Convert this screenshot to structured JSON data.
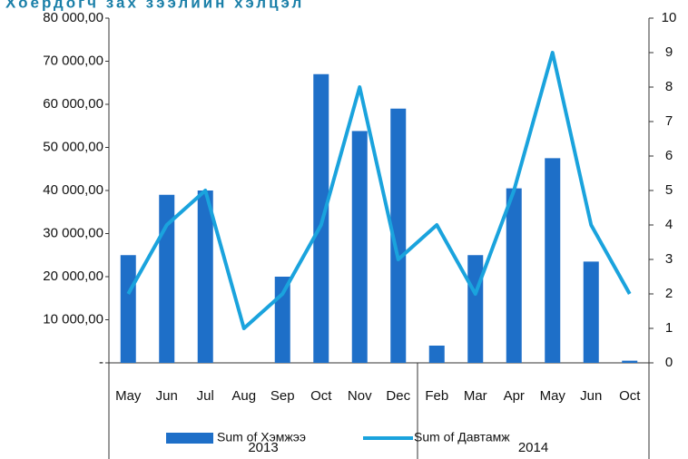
{
  "chart_data": {
    "type": "bar",
    "title": "Хоердогч зах зээлийн хэлцэл",
    "categories": [
      "May",
      "Jun",
      "Jul",
      "Aug",
      "Sep",
      "Oct",
      "Nov",
      "Dec",
      "Feb",
      "Mar",
      "Apr",
      "May",
      "Jun",
      "Oct"
    ],
    "groups": [
      {
        "name": "2013",
        "count": 8
      },
      {
        "name": "2014",
        "count": 6
      }
    ],
    "series": [
      {
        "name": "Sum of Хэмжээ",
        "type": "bar",
        "color": "#1e6fc8",
        "values": [
          25000,
          39000,
          40000,
          0,
          20000,
          67000,
          53800,
          59000,
          4000,
          25000,
          40500,
          47500,
          23500,
          500
        ]
      },
      {
        "name": "Sum of Давтамж",
        "type": "line",
        "axis": "y2",
        "color": "#1aa3dd",
        "values": [
          2,
          4,
          5,
          1,
          2,
          4,
          8,
          3,
          4,
          2,
          5,
          9,
          4,
          2
        ]
      }
    ],
    "ylim": [
      0,
      80000
    ],
    "yticks": [
      {
        "value": 0,
        "label": "-"
      },
      {
        "value": 10000,
        "label": "10 000,00"
      },
      {
        "value": 20000,
        "label": "20 000,00"
      },
      {
        "value": 30000,
        "label": "30 000,00"
      },
      {
        "value": 40000,
        "label": "40 000,00"
      },
      {
        "value": 50000,
        "label": "50 000,00"
      },
      {
        "value": 60000,
        "label": "60 000,00"
      },
      {
        "value": 70000,
        "label": "70 000,00"
      },
      {
        "value": 80000,
        "label": "80 000,00"
      }
    ],
    "y2lim": [
      0,
      10
    ],
    "y2ticks": [
      0,
      1,
      2,
      3,
      4,
      5,
      6,
      7,
      8,
      9,
      10
    ],
    "legend": "bottom"
  }
}
